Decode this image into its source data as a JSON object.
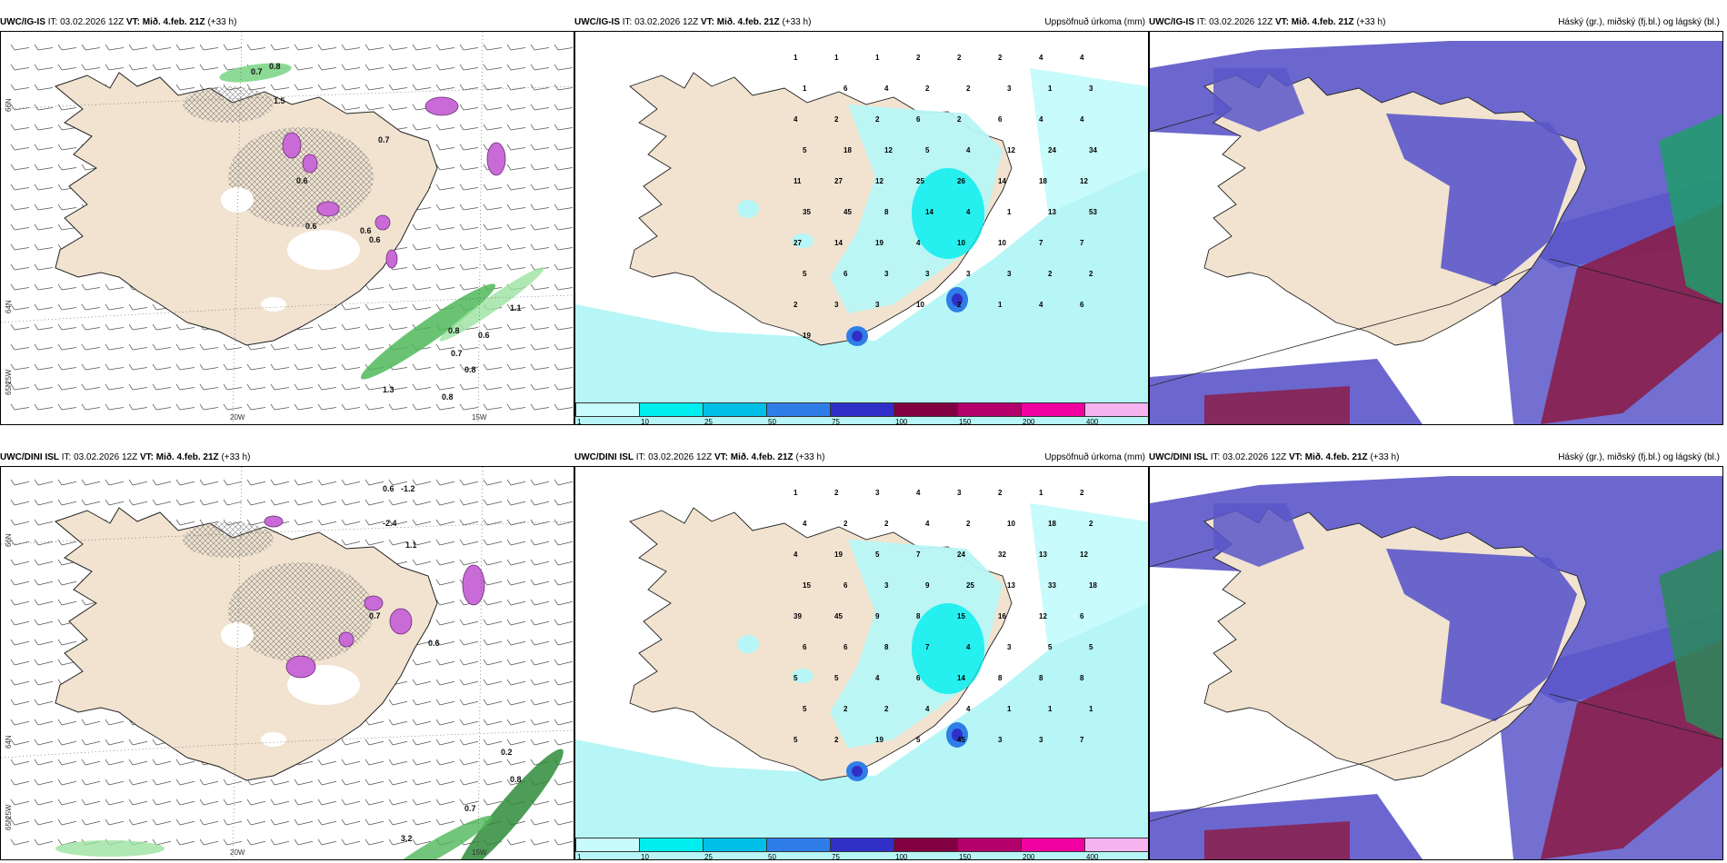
{
  "panels": {
    "p1": {
      "model": "UWC/IG-IS",
      "it": "IT: 03.02.2026 12Z",
      "vt": "VT: Mið. 4.feb. 21Z",
      "lead": "(+33 h)",
      "right_title": "",
      "lat_labels": [
        "66N",
        "64N",
        "65N"
      ],
      "lon_labels": [
        "20W",
        "15W",
        "25W"
      ]
    },
    "p2": {
      "model": "UWC/IG-IS",
      "it": "IT: 03.02.2026 12Z",
      "vt": "VT: Mið. 4.feb. 21Z",
      "lead": "(+33 h)",
      "right_title": "Uppsöfnuð úrkoma (mm)"
    },
    "p3": {
      "model": "UWC/IG-IS",
      "it": "IT: 03.02.2026 12Z",
      "vt": "VT: Mið. 4.feb. 21Z",
      "lead": "(+33 h)",
      "right_title": "Háský (gr.), miðský (fj.bl.) og lágský (bl.)"
    },
    "p4": {
      "model": "UWC/DINI ISL",
      "it": "IT: 03.02.2026 12Z",
      "vt": "VT: Mið. 4.feb. 21Z",
      "lead": "(+33 h)",
      "right_title": "",
      "lat_labels": [
        "66N",
        "64N",
        "65N"
      ],
      "lon_labels": [
        "20W",
        "15W",
        "25W"
      ]
    },
    "p5": {
      "model": "UWC/DINI ISL",
      "it": "IT: 03.02.2026 12Z",
      "vt": "VT: Mið. 4.feb. 21Z",
      "lead": "(+33 h)",
      "right_title": "Uppsöfnuð úrkoma (mm)"
    },
    "p6": {
      "model": "UWC/DINI ISL",
      "it": "IT: 03.02.2026 12Z",
      "vt": "VT: Mið. 4.feb. 21Z",
      "lead": "(+33 h)",
      "right_title": "Háský (gr.), miðský (fj.bl.) og lágský (bl.)"
    }
  },
  "colorbar": {
    "ticks": [
      "1",
      "10",
      "25",
      "50",
      "75",
      "100",
      "150",
      "200",
      "400"
    ],
    "colors": [
      "#c8fbfb",
      "#00eeee",
      "#00bfe6",
      "#2f7ee8",
      "#3030c8",
      "#800040",
      "#b3006b",
      "#f000a0",
      "#f5b3f0"
    ]
  },
  "p1_numbers": [
    "0.7",
    "0.8",
    "0.6",
    "1.5",
    "0.6",
    "0.6",
    "0.7",
    "0.6",
    "1.1",
    "0.8",
    "0.6",
    "0.7",
    "0.8",
    "1.3",
    "0.8"
  ],
  "p4_numbers": [
    "-1.2",
    "0.6",
    "-2.4",
    "1.1",
    "0.7",
    "0.6",
    "0.2",
    "0.8",
    "0.7",
    "3.2"
  ],
  "p2_numbers": [
    "1",
    "1",
    "1",
    "2",
    "2",
    "2",
    "4",
    "4",
    "1",
    "6",
    "4",
    "2",
    "2",
    "3",
    "1",
    "3",
    "4",
    "2",
    "2",
    "6",
    "2",
    "6",
    "4",
    "4",
    "5",
    "18",
    "12",
    "5",
    "4",
    "12",
    "24",
    "34",
    "11",
    "27",
    "12",
    "25",
    "26",
    "14",
    "18",
    "12",
    "35",
    "45",
    "8",
    "14",
    "4",
    "1",
    "13",
    "53",
    "27",
    "14",
    "19",
    "4",
    "10",
    "10",
    "7",
    "7",
    "5",
    "6",
    "3",
    "3",
    "3",
    "3",
    "2",
    "2",
    "2",
    "3",
    "3",
    "10",
    "2",
    "1",
    "4",
    "6",
    "19"
  ],
  "p5_numbers": [
    "1",
    "2",
    "3",
    "4",
    "3",
    "2",
    "1",
    "2",
    "4",
    "2",
    "2",
    "4",
    "2",
    "10",
    "18",
    "2",
    "4",
    "19",
    "5",
    "7",
    "24",
    "32",
    "13",
    "12",
    "15",
    "6",
    "3",
    "9",
    "25",
    "13",
    "33",
    "18",
    "39",
    "45",
    "9",
    "8",
    "15",
    "16",
    "12",
    "6",
    "6",
    "6",
    "8",
    "7",
    "4",
    "3",
    "5",
    "5",
    "5",
    "5",
    "4",
    "6",
    "14",
    "8",
    "8",
    "8",
    "5",
    "2",
    "2",
    "4",
    "4",
    "1",
    "1",
    "1",
    "5",
    "2",
    "19",
    "5",
    "45",
    "3",
    "3",
    "7"
  ]
}
